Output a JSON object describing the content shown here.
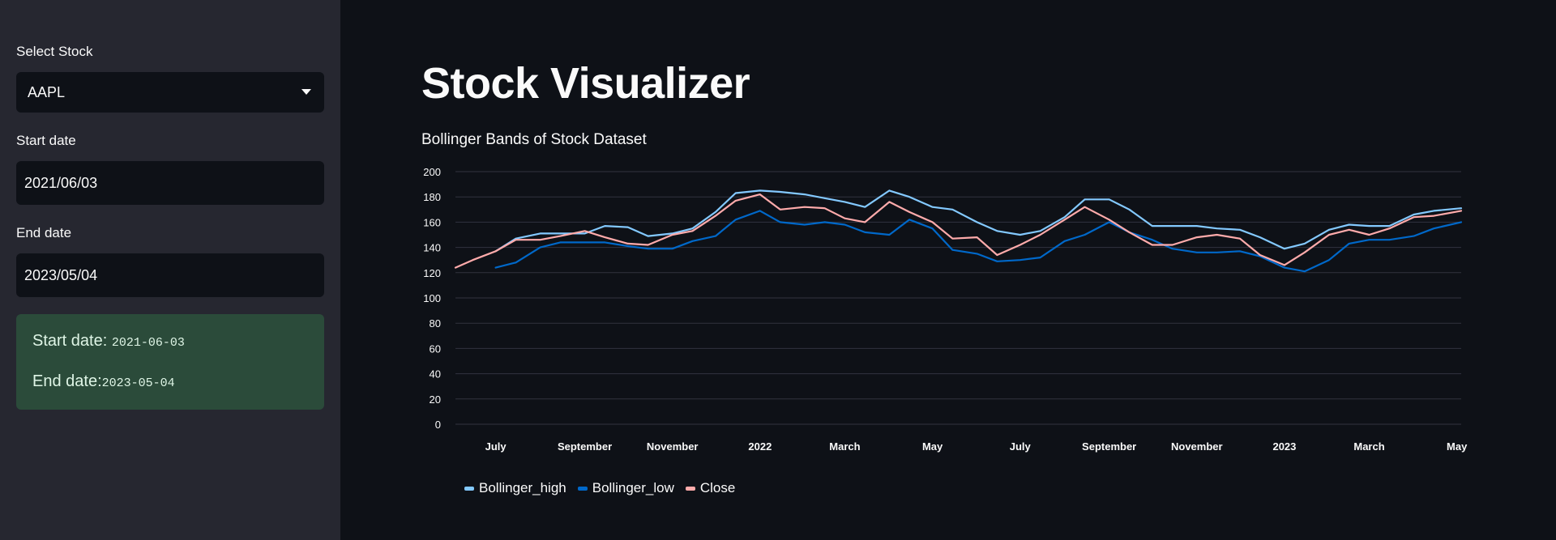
{
  "sidebar": {
    "select_stock_label": "Select Stock",
    "select_stock_value": "AAPL",
    "start_date_label": "Start date",
    "start_date_value": "2021/06/03",
    "end_date_label": "End date",
    "end_date_value": "2023/05/04",
    "info": {
      "start_prefix": "Start date: ",
      "start_value": "2021-06-03",
      "end_prefix": "End date:",
      "end_value": "2023-05-04"
    }
  },
  "main": {
    "title": "Stock Visualizer",
    "chart_title": "Bollinger Bands of Stock Dataset"
  },
  "colors": {
    "bollinger_high": "#83c9ff",
    "bollinger_low": "#0068c9",
    "close": "#ffabab",
    "success_bg": "#2b4b3a"
  },
  "chart_data": {
    "type": "line",
    "title": "Bollinger Bands of Stock Dataset",
    "xlabel": "",
    "ylabel": "",
    "ylim": [
      0,
      200
    ],
    "y_ticks": [
      0,
      20,
      40,
      60,
      80,
      100,
      120,
      140,
      160,
      180,
      200
    ],
    "x_range": [
      "2021-06-03",
      "2023-05-04"
    ],
    "x_ticks": [
      {
        "date": "2021-07-01",
        "label": "July"
      },
      {
        "date": "2021-09-01",
        "label": "September"
      },
      {
        "date": "2021-11-01",
        "label": "November"
      },
      {
        "date": "2022-01-01",
        "label": "2022"
      },
      {
        "date": "2022-03-01",
        "label": "March"
      },
      {
        "date": "2022-05-01",
        "label": "May"
      },
      {
        "date": "2022-07-01",
        "label": "July"
      },
      {
        "date": "2022-09-01",
        "label": "September"
      },
      {
        "date": "2022-11-01",
        "label": "November"
      },
      {
        "date": "2023-01-01",
        "label": "2023"
      },
      {
        "date": "2023-03-01",
        "label": "March"
      },
      {
        "date": "2023-05-01",
        "label": "May"
      }
    ],
    "grid": true,
    "legend_position": "bottom-left",
    "series": [
      {
        "name": "Bollinger_high",
        "color": "#83c9ff",
        "points": [
          [
            "2021-07-01",
            137
          ],
          [
            "2021-07-15",
            147
          ],
          [
            "2021-08-01",
            151
          ],
          [
            "2021-08-15",
            151
          ],
          [
            "2021-09-01",
            151
          ],
          [
            "2021-09-15",
            157
          ],
          [
            "2021-10-01",
            156
          ],
          [
            "2021-10-15",
            149
          ],
          [
            "2021-11-01",
            151
          ],
          [
            "2021-11-15",
            155
          ],
          [
            "2021-12-01",
            168
          ],
          [
            "2021-12-15",
            183
          ],
          [
            "2022-01-01",
            185
          ],
          [
            "2022-01-15",
            184
          ],
          [
            "2022-02-01",
            182
          ],
          [
            "2022-02-15",
            179
          ],
          [
            "2022-03-01",
            176
          ],
          [
            "2022-03-15",
            172
          ],
          [
            "2022-04-01",
            185
          ],
          [
            "2022-04-15",
            180
          ],
          [
            "2022-05-01",
            172
          ],
          [
            "2022-05-15",
            170
          ],
          [
            "2022-06-01",
            160
          ],
          [
            "2022-06-15",
            153
          ],
          [
            "2022-07-01",
            150
          ],
          [
            "2022-07-15",
            153
          ],
          [
            "2022-08-01",
            164
          ],
          [
            "2022-08-15",
            178
          ],
          [
            "2022-09-01",
            178
          ],
          [
            "2022-09-15",
            170
          ],
          [
            "2022-10-01",
            157
          ],
          [
            "2022-10-15",
            157
          ],
          [
            "2022-11-01",
            157
          ],
          [
            "2022-11-15",
            155
          ],
          [
            "2022-12-01",
            154
          ],
          [
            "2022-12-15",
            148
          ],
          [
            "2023-01-01",
            139
          ],
          [
            "2023-01-15",
            143
          ],
          [
            "2023-02-01",
            154
          ],
          [
            "2023-02-15",
            158
          ],
          [
            "2023-03-01",
            157
          ],
          [
            "2023-03-15",
            157
          ],
          [
            "2023-04-01",
            166
          ],
          [
            "2023-04-15",
            169
          ],
          [
            "2023-05-04",
            171
          ]
        ]
      },
      {
        "name": "Bollinger_low",
        "color": "#0068c9",
        "points": [
          [
            "2021-07-01",
            124
          ],
          [
            "2021-07-15",
            128
          ],
          [
            "2021-08-01",
            140
          ],
          [
            "2021-08-15",
            144
          ],
          [
            "2021-09-01",
            144
          ],
          [
            "2021-09-15",
            144
          ],
          [
            "2021-10-01",
            141
          ],
          [
            "2021-10-15",
            139
          ],
          [
            "2021-11-01",
            139
          ],
          [
            "2021-11-15",
            145
          ],
          [
            "2021-12-01",
            149
          ],
          [
            "2021-12-15",
            162
          ],
          [
            "2022-01-01",
            169
          ],
          [
            "2022-01-15",
            160
          ],
          [
            "2022-02-01",
            158
          ],
          [
            "2022-02-15",
            160
          ],
          [
            "2022-03-01",
            158
          ],
          [
            "2022-03-15",
            152
          ],
          [
            "2022-04-01",
            150
          ],
          [
            "2022-04-15",
            162
          ],
          [
            "2022-05-01",
            155
          ],
          [
            "2022-05-15",
            138
          ],
          [
            "2022-06-01",
            135
          ],
          [
            "2022-06-15",
            129
          ],
          [
            "2022-07-01",
            130
          ],
          [
            "2022-07-15",
            132
          ],
          [
            "2022-08-01",
            145
          ],
          [
            "2022-08-15",
            150
          ],
          [
            "2022-09-01",
            160
          ],
          [
            "2022-09-15",
            152
          ],
          [
            "2022-10-01",
            146
          ],
          [
            "2022-10-15",
            139
          ],
          [
            "2022-11-01",
            136
          ],
          [
            "2022-11-15",
            136
          ],
          [
            "2022-12-01",
            137
          ],
          [
            "2022-12-15",
            133
          ],
          [
            "2023-01-01",
            124
          ],
          [
            "2023-01-15",
            121
          ],
          [
            "2023-02-01",
            130
          ],
          [
            "2023-02-15",
            143
          ],
          [
            "2023-03-01",
            146
          ],
          [
            "2023-03-15",
            146
          ],
          [
            "2023-04-01",
            149
          ],
          [
            "2023-04-15",
            155
          ],
          [
            "2023-05-04",
            160
          ]
        ]
      },
      {
        "name": "Close",
        "color": "#ffabab",
        "points": [
          [
            "2021-06-03",
            124
          ],
          [
            "2021-06-15",
            130
          ],
          [
            "2021-07-01",
            137
          ],
          [
            "2021-07-15",
            146
          ],
          [
            "2021-08-01",
            146
          ],
          [
            "2021-08-15",
            149
          ],
          [
            "2021-09-01",
            153
          ],
          [
            "2021-09-15",
            148
          ],
          [
            "2021-10-01",
            143
          ],
          [
            "2021-10-15",
            142
          ],
          [
            "2021-11-01",
            150
          ],
          [
            "2021-11-15",
            153
          ],
          [
            "2021-12-01",
            165
          ],
          [
            "2021-12-15",
            177
          ],
          [
            "2022-01-01",
            182
          ],
          [
            "2022-01-15",
            170
          ],
          [
            "2022-02-01",
            172
          ],
          [
            "2022-02-15",
            171
          ],
          [
            "2022-03-01",
            163
          ],
          [
            "2022-03-15",
            160
          ],
          [
            "2022-04-01",
            176
          ],
          [
            "2022-04-15",
            168
          ],
          [
            "2022-05-01",
            160
          ],
          [
            "2022-05-15",
            147
          ],
          [
            "2022-06-01",
            148
          ],
          [
            "2022-06-15",
            134
          ],
          [
            "2022-07-01",
            142
          ],
          [
            "2022-07-15",
            150
          ],
          [
            "2022-08-01",
            162
          ],
          [
            "2022-08-15",
            172
          ],
          [
            "2022-09-01",
            162
          ],
          [
            "2022-09-15",
            152
          ],
          [
            "2022-10-01",
            142
          ],
          [
            "2022-10-15",
            142
          ],
          [
            "2022-11-01",
            148
          ],
          [
            "2022-11-15",
            150
          ],
          [
            "2022-12-01",
            147
          ],
          [
            "2022-12-15",
            134
          ],
          [
            "2023-01-01",
            126
          ],
          [
            "2023-01-15",
            136
          ],
          [
            "2023-02-01",
            150
          ],
          [
            "2023-02-15",
            154
          ],
          [
            "2023-03-01",
            150
          ],
          [
            "2023-03-15",
            155
          ],
          [
            "2023-04-01",
            164
          ],
          [
            "2023-04-15",
            165
          ],
          [
            "2023-05-04",
            169
          ]
        ]
      }
    ]
  }
}
